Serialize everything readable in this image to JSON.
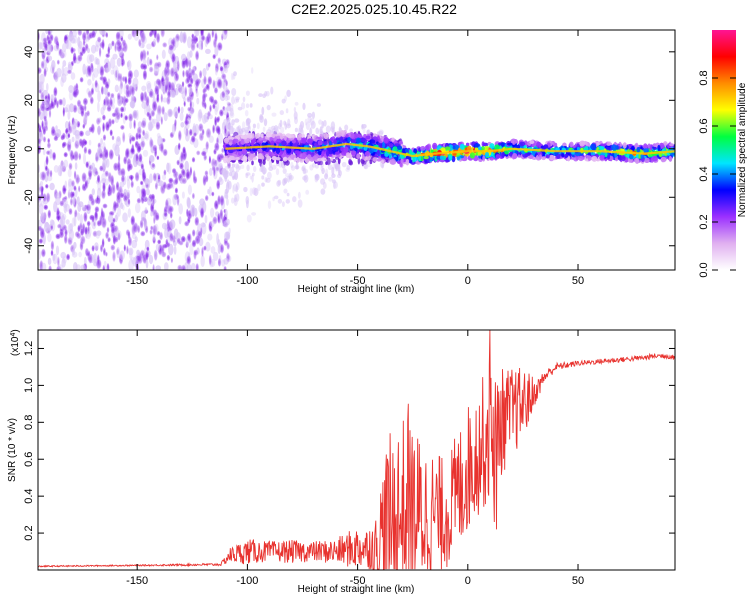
{
  "title": "C2E2.2025.025.10.45.R22",
  "colors": {
    "snr_line": "#e8322e",
    "axis": "#000000",
    "noise_blob": "#8a2be2",
    "noise_light": "#d8c4f7"
  },
  "chart_data": [
    {
      "type": "heatmap",
      "name": "spectrogram",
      "xlabel": "Height of straight line (km)",
      "ylabel": "Frequency (Hz)",
      "xlim": [
        -195,
        94
      ],
      "ylim": [
        -50,
        49
      ],
      "xticks": [
        -150,
        -100,
        -50,
        0,
        50
      ],
      "xtick_labels": [
        "-150",
        "-100",
        "-50",
        "0",
        "50"
      ],
      "yticks": [
        -40,
        -20,
        0,
        20,
        40
      ],
      "ytick_labels": [
        "-40",
        "-20",
        "0",
        "20",
        "40"
      ],
      "colorbar": {
        "label": "Normalized spectral amplitude",
        "range": [
          0,
          1
        ],
        "ticks": [
          0,
          0.2,
          0.4,
          0.6,
          0.8
        ],
        "tick_labels": [
          "0.0",
          "0.2",
          "0.4",
          "0.6",
          "0.8"
        ],
        "colormap": [
          "#ffffff",
          "#e0b0f0",
          "#9b30ff",
          "#0000ff",
          "#00e5ff",
          "#00ff40",
          "#ffff00",
          "#ff8c00",
          "#ff0000",
          "#ff1493"
        ]
      },
      "regions": [
        {
          "x_range": [
            -195,
            -110
          ],
          "desc": "broadband noise",
          "freq_range": [
            -50,
            49
          ],
          "amplitude": 0.15
        },
        {
          "x_range": [
            -110,
            -30
          ],
          "desc": "noise concentrating toward 0 Hz",
          "amplitude": 0.25
        }
      ],
      "ridge": {
        "name": "signal ridge",
        "x": [
          -110,
          -90,
          -70,
          -55,
          -45,
          -35,
          -25,
          -15,
          0,
          10,
          20,
          40,
          60,
          80,
          94
        ],
        "frequency": [
          0,
          1,
          0,
          2,
          1,
          -1,
          -3,
          -2,
          -1,
          -1,
          0,
          -1,
          -1,
          -2,
          -1
        ],
        "amplitude": [
          0.3,
          0.35,
          0.4,
          0.45,
          0.5,
          0.55,
          0.7,
          0.9,
          0.9,
          0.85,
          0.6,
          0.5,
          0.6,
          0.75,
          0.6
        ]
      }
    },
    {
      "type": "line",
      "name": "snr",
      "xlabel": "Height of straight line (km)",
      "ylabel": "SNR (10 * v/v)",
      "y_multiplier": "(x10",
      "y_multiplier_exp": "4",
      "xlim": [
        -195,
        94
      ],
      "ylim": [
        0,
        1.3
      ],
      "xticks": [
        -150,
        -100,
        -50,
        0,
        50
      ],
      "xtick_labels": [
        "-150",
        "-100",
        "-50",
        "0",
        "50"
      ],
      "yticks": [
        0.2,
        0.4,
        0.6,
        0.8,
        1.0,
        1.2
      ],
      "ytick_labels": [
        "0.2",
        "0.4",
        "0.6",
        "0.8",
        "1.0",
        "1.2"
      ],
      "series": [
        {
          "name": "SNR",
          "x": [
            -195,
            -150,
            -112,
            -108,
            -100,
            -90,
            -80,
            -70,
            -60,
            -50,
            -42,
            -38,
            -35,
            -30,
            -25,
            -20,
            -15,
            -10,
            -5,
            0,
            5,
            10,
            15,
            20,
            25,
            30,
            35,
            40,
            50,
            60,
            70,
            80,
            85,
            90,
            94
          ],
          "y_baseline": [
            0.02,
            0.025,
            0.03,
            0.08,
            0.1,
            0.1,
            0.1,
            0.1,
            0.1,
            0.12,
            0.12,
            0.2,
            0.25,
            0.3,
            0.3,
            0.3,
            0.3,
            0.3,
            0.4,
            0.55,
            0.65,
            0.75,
            0.8,
            0.85,
            0.9,
            0.95,
            1.05,
            1.1,
            1.12,
            1.13,
            1.14,
            1.15,
            1.16,
            1.16,
            1.15
          ],
          "y_amplitude": [
            0.005,
            0.005,
            0.01,
            0.06,
            0.1,
            0.08,
            0.09,
            0.08,
            0.1,
            0.17,
            0.15,
            0.45,
            0.5,
            0.55,
            0.5,
            0.4,
            0.35,
            0.3,
            0.35,
            0.35,
            0.35,
            0.4,
            0.3,
            0.25,
            0.2,
            0.1,
            0.05,
            0.03,
            0.02,
            0.02,
            0.02,
            0.02,
            0.02,
            0.02,
            0.02
          ],
          "peaks": [
            {
              "x": -27,
              "y": 0.9
            },
            {
              "x": 10,
              "y": 1.3
            },
            {
              "x": 12,
              "y": 0.26
            },
            {
              "x": 13,
              "y": 0.22
            }
          ]
        }
      ]
    }
  ]
}
